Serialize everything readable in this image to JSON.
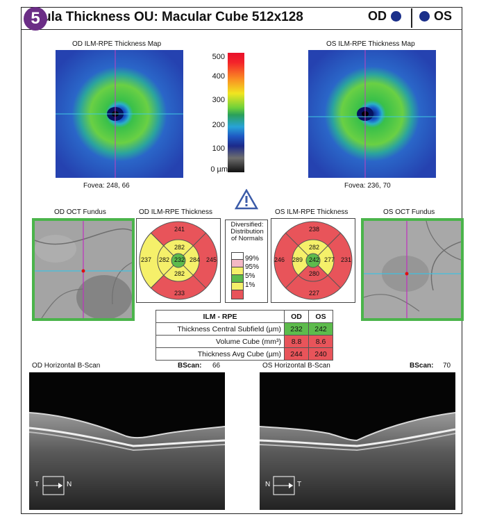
{
  "header": {
    "badge": "5",
    "title": "ula Thickness OU: Macular Cube 512x128",
    "od_label": "OD",
    "os_label": "OS"
  },
  "maps": {
    "od_title": "OD ILM-RPE Thickness Map",
    "os_title": "OS ILM-RPE Thickness Map",
    "od_fovea": "Fovea: 248, 66",
    "os_fovea": "Fovea: 236, 70"
  },
  "colorbar": {
    "ticks": [
      "500",
      "400",
      "300",
      "200",
      "100",
      "0 µm"
    ]
  },
  "fundus": {
    "od_title": "OD OCT Fundus",
    "os_title": "OS OCT Fundus"
  },
  "etdrs": {
    "od_title": "OD ILM-RPE Thickness",
    "os_title": "OS ILM-RPE Thickness",
    "od": {
      "outer_sup": "241",
      "outer_nas": "245",
      "outer_inf": "233",
      "outer_temp": "237",
      "inner_sup": "282",
      "inner_nas": "284",
      "inner_inf": "282",
      "inner_temp": "282",
      "center": "232"
    },
    "os": {
      "outer_sup": "238",
      "outer_temp": "231",
      "outer_inf": "227",
      "outer_nas": "246",
      "inner_sup": "282",
      "inner_temp": "277",
      "inner_inf": "280",
      "inner_nas": "289",
      "center": "242"
    }
  },
  "legend": {
    "title": "Diversified: Distribution of Normals",
    "items": [
      "99%",
      "95%",
      "5%",
      "1%"
    ],
    "colors": {
      "white": "#ffffff",
      "pink": "#f4b8c4",
      "yellow": "#f5f06a",
      "green": "#5dbb4c",
      "red": "#e8545a"
    }
  },
  "table": {
    "header": [
      "ILM - RPE",
      "OD",
      "OS"
    ],
    "rows": [
      [
        "Thickness Central Subfield (µm)",
        "232",
        "242"
      ],
      [
        "Volume Cube (mm³)",
        "8.8",
        "8.6"
      ],
      [
        "Thickness Avg Cube (µm)",
        "244",
        "240"
      ]
    ]
  },
  "bscan": {
    "od_title": "OD Horizontal B-Scan",
    "os_title": "OS Horizontal B-Scan",
    "bscan_label": "BScan:",
    "od_value": "66",
    "os_value": "70",
    "od_left": "T",
    "od_right": "N",
    "os_left": "N",
    "os_right": "T"
  },
  "icons": {
    "warning": "warning-triangle-icon"
  },
  "accent_colors": {
    "badge": "#6b2e86",
    "eye_dot": "#1a2f8a",
    "fundus_border": "#4bb44b"
  }
}
